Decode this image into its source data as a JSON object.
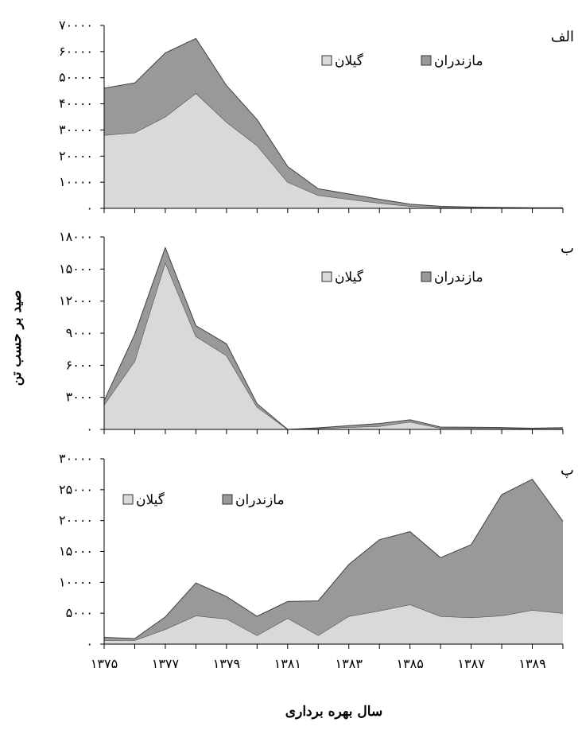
{
  "chart_data": [
    {
      "type": "area",
      "stacked": true,
      "panel_label": "الف",
      "x": [
        1375,
        1376,
        1377,
        1378,
        1379,
        1380,
        1381,
        1382,
        1383,
        1384,
        1385,
        1386,
        1387,
        1388,
        1389,
        1390
      ],
      "series": [
        {
          "name": "گیلان",
          "color": "#d9d9d9",
          "values": [
            28000,
            29000,
            35000,
            44000,
            33000,
            24000,
            10000,
            5000,
            3500,
            2000,
            800,
            300,
            200,
            150,
            100,
            100
          ]
        },
        {
          "name": "مازندران",
          "color": "#999999",
          "values": [
            18000,
            19000,
            24500,
            21000,
            14000,
            10000,
            6000,
            2500,
            2000,
            1500,
            800,
            500,
            300,
            200,
            150,
            100
          ]
        }
      ],
      "ylim": [
        0,
        70000
      ],
      "yticks": [
        0,
        10000,
        20000,
        30000,
        40000,
        50000,
        60000,
        70000
      ],
      "ytick_labels": [
        "۰",
        "۱۰۰۰۰",
        "۲۰۰۰۰",
        "۳۰۰۰۰",
        "۴۰۰۰۰",
        "۵۰۰۰۰",
        "۶۰۰۰۰",
        "۷۰۰۰۰"
      ],
      "legend_position": "top-right"
    },
    {
      "type": "area",
      "stacked": true,
      "panel_label": "ب",
      "x": [
        1375,
        1376,
        1377,
        1378,
        1379,
        1380,
        1381,
        1382,
        1383,
        1384,
        1385,
        1386,
        1387,
        1388,
        1389,
        1390
      ],
      "series": [
        {
          "name": "گیلان",
          "color": "#d9d9d9",
          "values": [
            2300,
            6400,
            15600,
            8700,
            6900,
            2100,
            0,
            80,
            200,
            300,
            700,
            120,
            110,
            100,
            50,
            60
          ]
        },
        {
          "name": "مازندران",
          "color": "#999999",
          "values": [
            400,
            2500,
            1400,
            1000,
            1100,
            300,
            0,
            70,
            150,
            250,
            200,
            100,
            90,
            80,
            60,
            100
          ]
        }
      ],
      "ylim": [
        0,
        18000
      ],
      "yticks": [
        0,
        3000,
        6000,
        9000,
        12000,
        15000,
        18000
      ],
      "ytick_labels": [
        "۰",
        "۳۰۰۰",
        "۶۰۰۰",
        "۹۰۰۰",
        "۱۲۰۰۰",
        "۱۵۰۰۰",
        "۱۸۰۰۰"
      ],
      "legend_position": "top-right"
    },
    {
      "type": "area",
      "stacked": true,
      "panel_label": "پ",
      "x": [
        1375,
        1376,
        1377,
        1378,
        1379,
        1380,
        1381,
        1382,
        1383,
        1384,
        1385,
        1386,
        1387,
        1388,
        1389,
        1390
      ],
      "series": [
        {
          "name": "گیلان",
          "color": "#d9d9d9",
          "values": [
            600,
            600,
            2400,
            4600,
            4100,
            1400,
            4200,
            1400,
            4500,
            5400,
            6400,
            4500,
            4300,
            4600,
            5500,
            5000
          ]
        },
        {
          "name": "مازندران",
          "color": "#999999",
          "values": [
            500,
            300,
            2000,
            5300,
            3600,
            3100,
            2700,
            5600,
            8400,
            11500,
            11800,
            9500,
            11800,
            19600,
            21200,
            14900
          ]
        }
      ],
      "ylim": [
        0,
        30000
      ],
      "yticks": [
        0,
        5000,
        10000,
        15000,
        20000,
        25000,
        30000
      ],
      "ytick_labels": [
        "۰",
        "۵۰۰۰",
        "۱۰۰۰۰",
        "۱۵۰۰۰",
        "۲۰۰۰۰",
        "۲۵۰۰۰",
        "۳۰۰۰۰"
      ],
      "legend_position": "top-center"
    }
  ],
  "xtick_labels": [
    {
      "year": 1375,
      "label": "۱۳۷۵"
    },
    {
      "year": 1377,
      "label": "۱۳۷۷"
    },
    {
      "year": 1379,
      "label": "۱۳۷۹"
    },
    {
      "year": 1381,
      "label": "۱۳۸۱"
    },
    {
      "year": 1383,
      "label": "۱۳۸۳"
    },
    {
      "year": 1385,
      "label": "۱۳۸۵"
    },
    {
      "year": 1387,
      "label": "۱۳۸۷"
    },
    {
      "year": 1389,
      "label": "۱۳۸۹"
    }
  ],
  "xlabel": "سال بهره برداری",
  "ylabel": "صید بر حسب تن"
}
